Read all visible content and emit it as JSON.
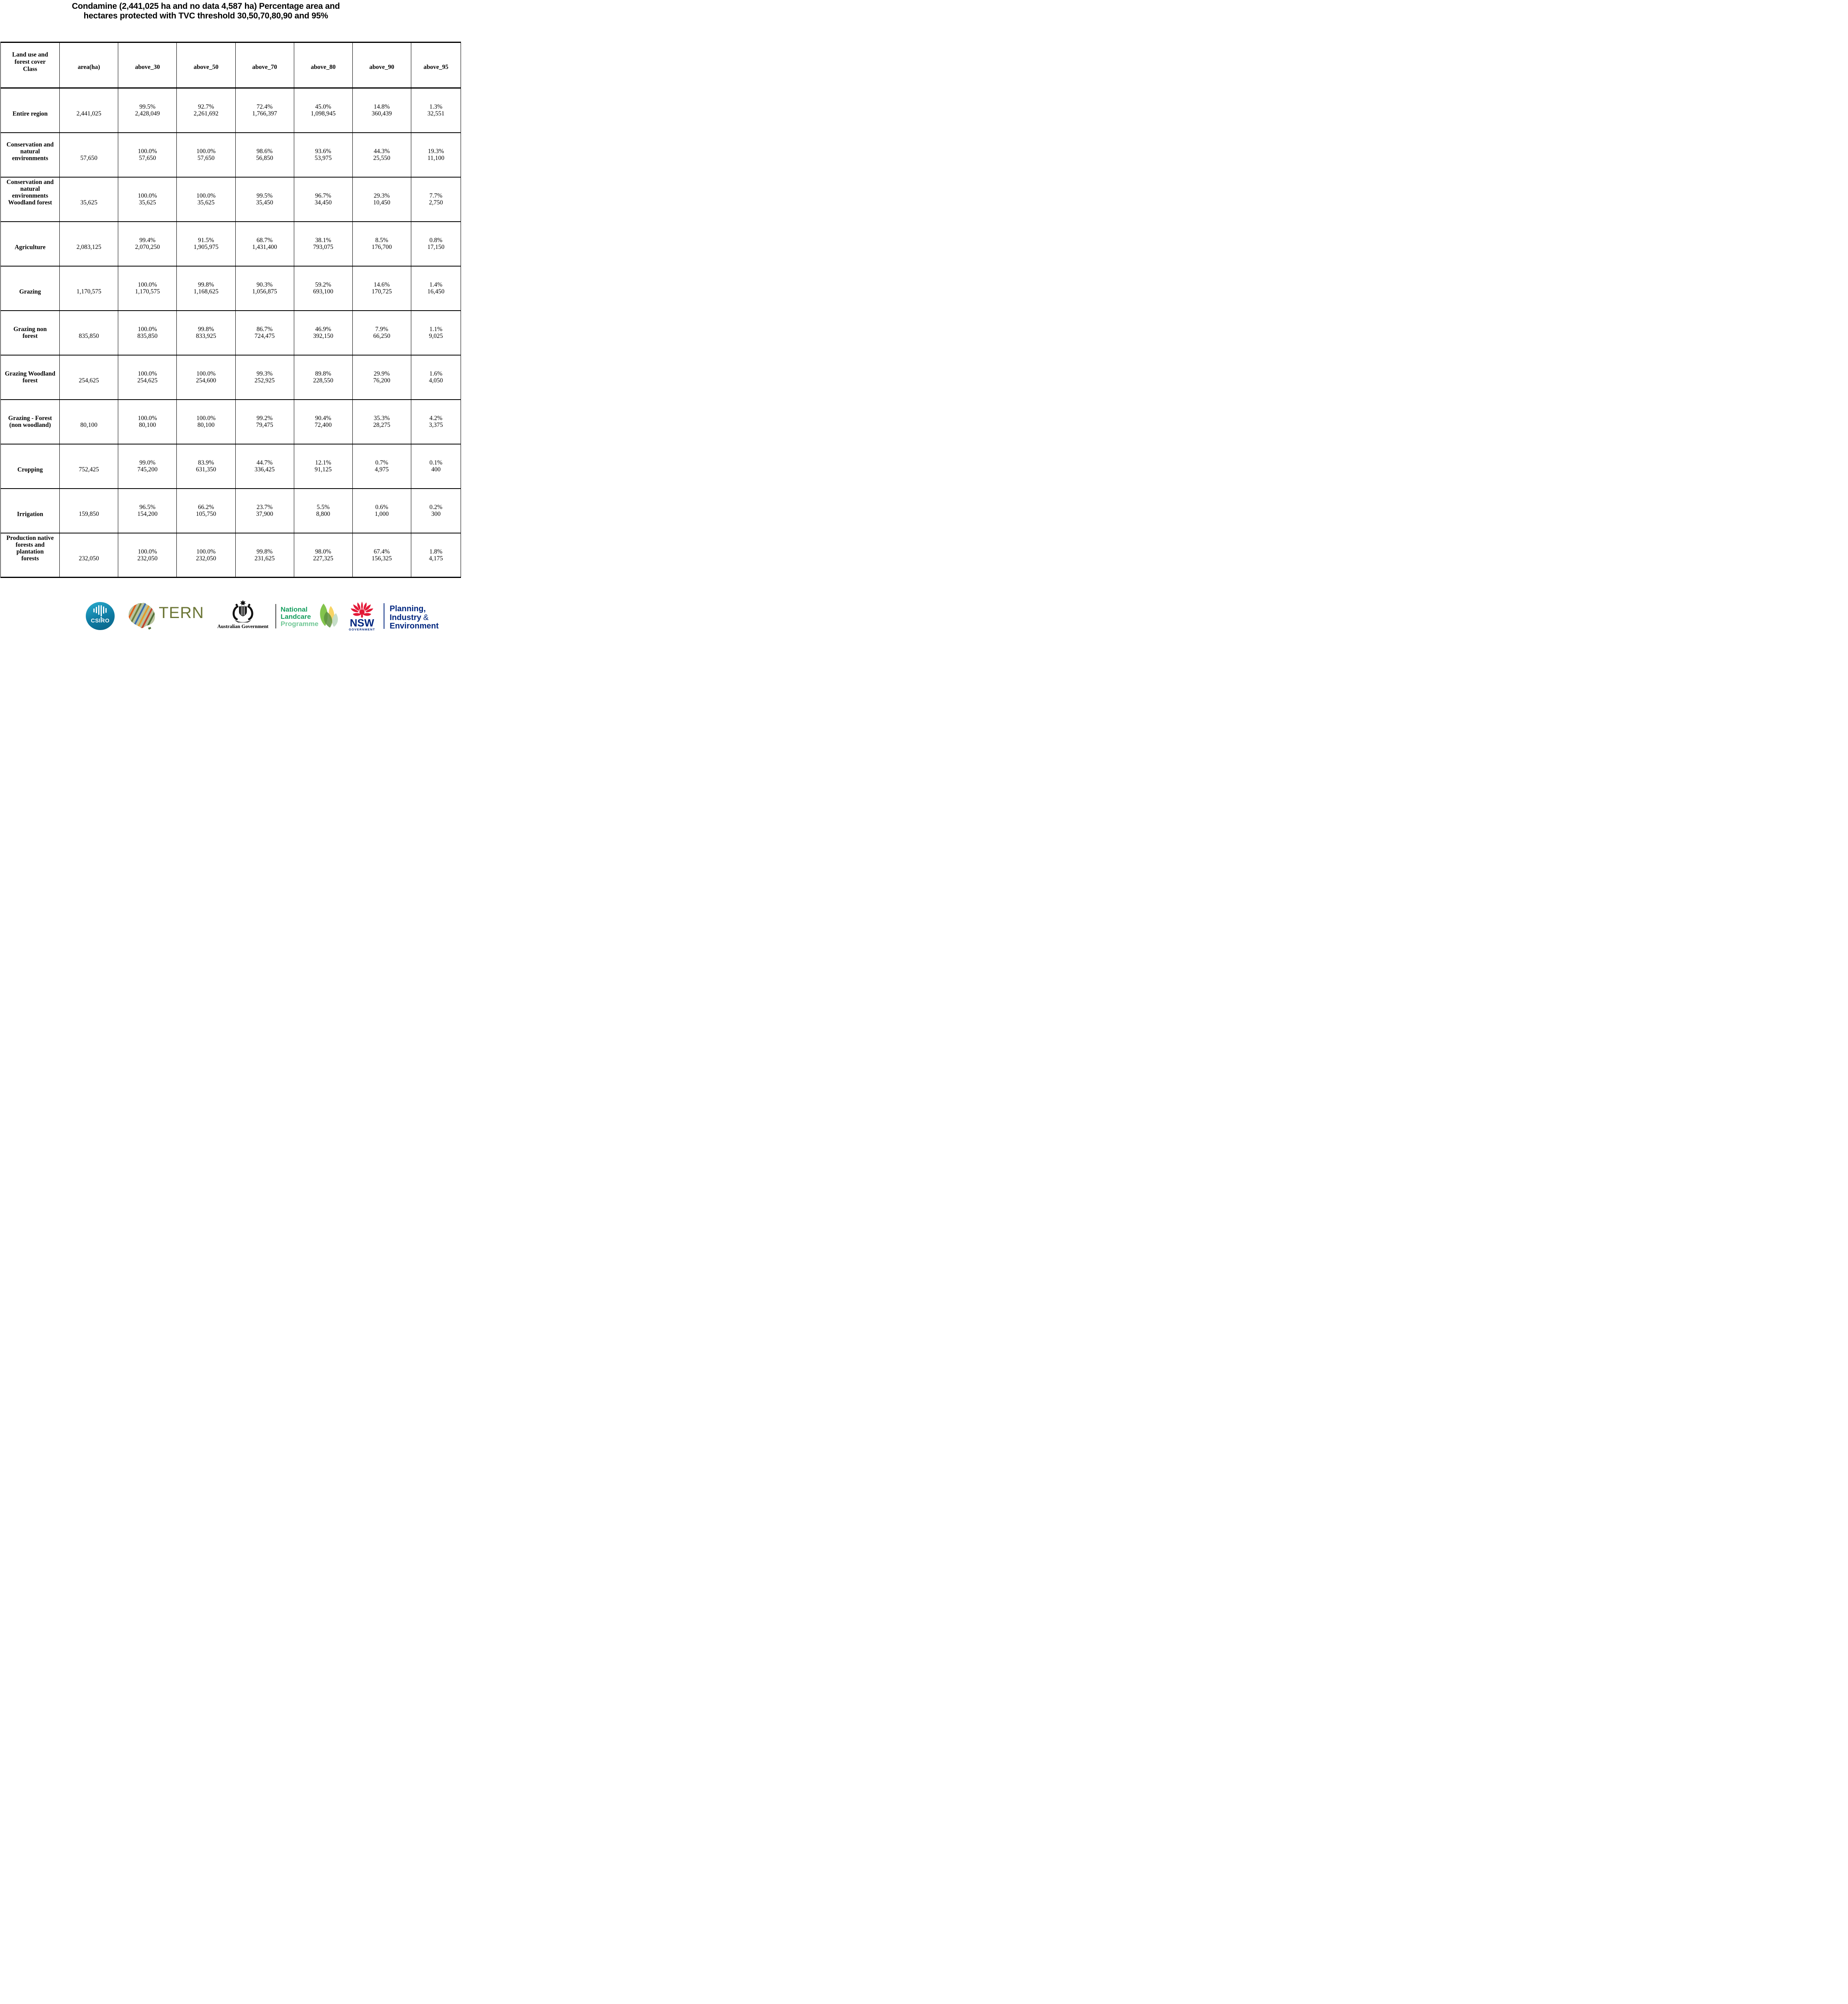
{
  "title_lines": [
    "Condamine (2,441,025 ha and no data 4,587 ha) Percentage area and",
    "hectares protected with TVC threshold 30,50,70,80,90 and 95%"
  ],
  "table": {
    "header": {
      "class_lines": [
        "Land use and",
        "forest cover",
        "Class"
      ],
      "cols": [
        "area(ha)",
        "above_30",
        "above_50",
        "above_70",
        "above_80",
        "above_90",
        "above_95"
      ]
    },
    "rows": [
      {
        "label_lines": [
          "Entire region"
        ],
        "area": "2,441,025",
        "cells": [
          {
            "pct": "99.5%",
            "ha": "2,428,049"
          },
          {
            "pct": "92.7%",
            "ha": "2,261,692"
          },
          {
            "pct": "72.4%",
            "ha": "1,766,397"
          },
          {
            "pct": "45.0%",
            "ha": "1,098,945"
          },
          {
            "pct": "14.8%",
            "ha": "360,439"
          },
          {
            "pct": "1.3%",
            "ha": "32,551"
          }
        ]
      },
      {
        "label_lines": [
          "Conservation and",
          "natural",
          "environments"
        ],
        "area": "57,650",
        "cells": [
          {
            "pct": "100.0%",
            "ha": "57,650"
          },
          {
            "pct": "100.0%",
            "ha": "57,650"
          },
          {
            "pct": "98.6%",
            "ha": "56,850"
          },
          {
            "pct": "93.6%",
            "ha": "53,975"
          },
          {
            "pct": "44.3%",
            "ha": "25,550"
          },
          {
            "pct": "19.3%",
            "ha": "11,100"
          }
        ]
      },
      {
        "label_lines": [
          "Conservation and",
          "natural",
          "environments",
          "Woodland forest"
        ],
        "area": "35,625",
        "cells": [
          {
            "pct": "100.0%",
            "ha": "35,625"
          },
          {
            "pct": "100.0%",
            "ha": "35,625"
          },
          {
            "pct": "99.5%",
            "ha": "35,450"
          },
          {
            "pct": "96.7%",
            "ha": "34,450"
          },
          {
            "pct": "29.3%",
            "ha": "10,450"
          },
          {
            "pct": "7.7%",
            "ha": "2,750"
          }
        ]
      },
      {
        "label_lines": [
          "Agriculture"
        ],
        "area": "2,083,125",
        "cells": [
          {
            "pct": "99.4%",
            "ha": "2,070,250"
          },
          {
            "pct": "91.5%",
            "ha": "1,905,975"
          },
          {
            "pct": "68.7%",
            "ha": "1,431,400"
          },
          {
            "pct": "38.1%",
            "ha": "793,075"
          },
          {
            "pct": "8.5%",
            "ha": "176,700"
          },
          {
            "pct": "0.8%",
            "ha": "17,150"
          }
        ]
      },
      {
        "label_lines": [
          "Grazing"
        ],
        "area": "1,170,575",
        "cells": [
          {
            "pct": "100.0%",
            "ha": "1,170,575"
          },
          {
            "pct": "99.8%",
            "ha": "1,168,625"
          },
          {
            "pct": "90.3%",
            "ha": "1,056,875"
          },
          {
            "pct": "59.2%",
            "ha": "693,100"
          },
          {
            "pct": "14.6%",
            "ha": "170,725"
          },
          {
            "pct": "1.4%",
            "ha": "16,450"
          }
        ]
      },
      {
        "label_lines": [
          "Grazing non",
          "forest"
        ],
        "area": "835,850",
        "cells": [
          {
            "pct": "100.0%",
            "ha": "835,850"
          },
          {
            "pct": "99.8%",
            "ha": "833,925"
          },
          {
            "pct": "86.7%",
            "ha": "724,475"
          },
          {
            "pct": "46.9%",
            "ha": "392,150"
          },
          {
            "pct": "7.9%",
            "ha": "66,250"
          },
          {
            "pct": "1.1%",
            "ha": "9,025"
          }
        ]
      },
      {
        "label_lines": [
          "Grazing Woodland",
          "forest"
        ],
        "area": "254,625",
        "cells": [
          {
            "pct": "100.0%",
            "ha": "254,625"
          },
          {
            "pct": "100.0%",
            "ha": "254,600"
          },
          {
            "pct": "99.3%",
            "ha": "252,925"
          },
          {
            "pct": "89.8%",
            "ha": "228,550"
          },
          {
            "pct": "29.9%",
            "ha": "76,200"
          },
          {
            "pct": "1.6%",
            "ha": "4,050"
          }
        ]
      },
      {
        "label_lines": [
          "Grazing - Forest",
          "(non woodland)"
        ],
        "area": "80,100",
        "cells": [
          {
            "pct": "100.0%",
            "ha": "80,100"
          },
          {
            "pct": "100.0%",
            "ha": "80,100"
          },
          {
            "pct": "99.2%",
            "ha": "79,475"
          },
          {
            "pct": "90.4%",
            "ha": "72,400"
          },
          {
            "pct": "35.3%",
            "ha": "28,275"
          },
          {
            "pct": "4.2%",
            "ha": "3,375"
          }
        ]
      },
      {
        "label_lines": [
          "Cropping"
        ],
        "area": "752,425",
        "cells": [
          {
            "pct": "99.0%",
            "ha": "745,200"
          },
          {
            "pct": "83.9%",
            "ha": "631,350"
          },
          {
            "pct": "44.7%",
            "ha": "336,425"
          },
          {
            "pct": "12.1%",
            "ha": "91,125"
          },
          {
            "pct": "0.7%",
            "ha": "4,975"
          },
          {
            "pct": "0.1%",
            "ha": "400"
          }
        ]
      },
      {
        "label_lines": [
          "Irrigation"
        ],
        "area": "159,850",
        "cells": [
          {
            "pct": "96.5%",
            "ha": "154,200"
          },
          {
            "pct": "66.2%",
            "ha": "105,750"
          },
          {
            "pct": "23.7%",
            "ha": "37,900"
          },
          {
            "pct": "5.5%",
            "ha": "8,800"
          },
          {
            "pct": "0.6%",
            "ha": "1,000"
          },
          {
            "pct": "0.2%",
            "ha": "300"
          }
        ]
      },
      {
        "label_lines": [
          "Production native",
          "forests and",
          "plantation",
          "forests"
        ],
        "area": "232,050",
        "cells": [
          {
            "pct": "100.0%",
            "ha": "232,050"
          },
          {
            "pct": "100.0%",
            "ha": "232,050"
          },
          {
            "pct": "99.8%",
            "ha": "231,625"
          },
          {
            "pct": "98.0%",
            "ha": "227,325"
          },
          {
            "pct": "67.4%",
            "ha": "156,325"
          },
          {
            "pct": "1.8%",
            "ha": "4,175"
          }
        ]
      }
    ]
  },
  "footer": {
    "csiro": {
      "label": "CSIRO"
    },
    "tern": {
      "label": "TERN"
    },
    "aus_gov": {
      "label": "Australian Government"
    },
    "landcare": {
      "lines": [
        "National",
        "Landcare",
        "Programme"
      ]
    },
    "nsw": {
      "label": "NSW",
      "sub": "GOVERNMENT"
    },
    "planning": {
      "lines": [
        "Planning,",
        "Industry",
        "Environment"
      ],
      "amp": "&"
    }
  },
  "colors": {
    "text": "#000000",
    "csiro_teal_light": "#2aaccd",
    "csiro_teal_dark": "#0a6386",
    "tern_olive": "#6b7535",
    "landcare_green": "#149e5e",
    "programme_green": "#70c795",
    "leaf_light_green": "#7cc143",
    "leaf_yellow": "#f7cf53",
    "leaf_dark_green": "#5d9140",
    "nsw_red": "#e31837",
    "nsw_navy": "#00267f"
  }
}
